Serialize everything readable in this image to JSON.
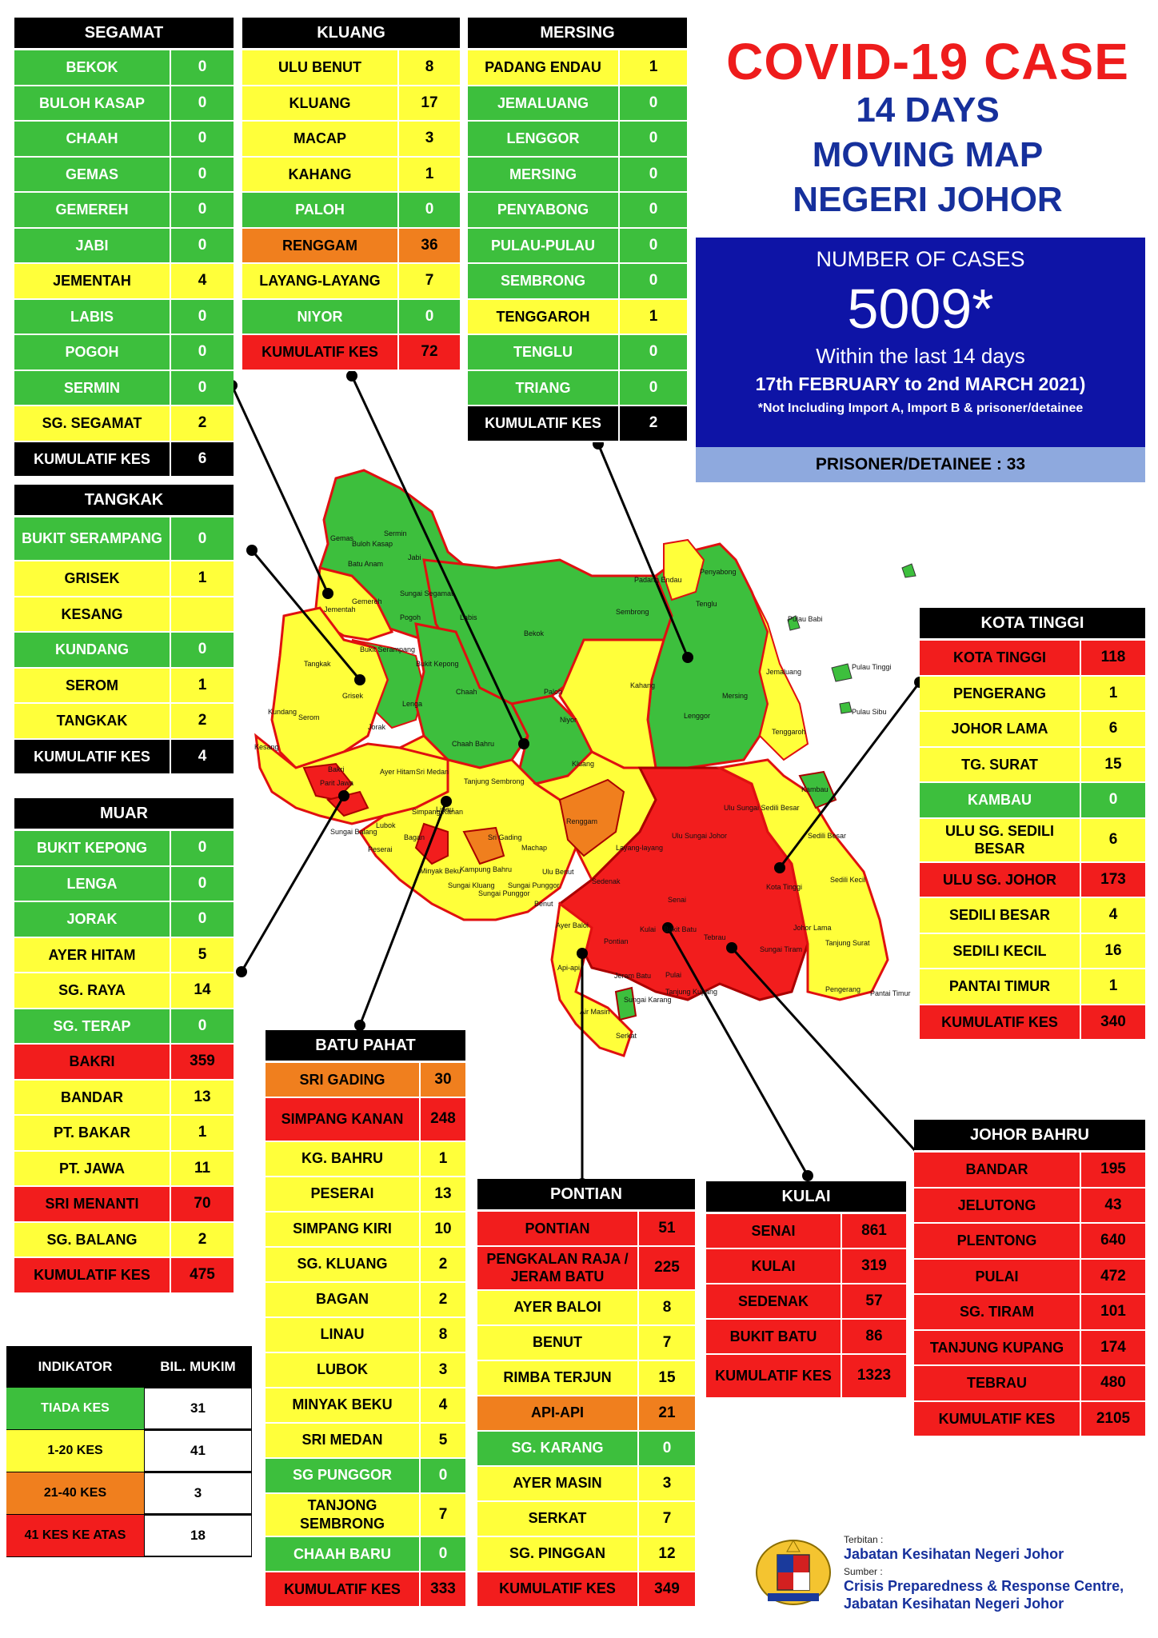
{
  "title": {
    "line1": "COVID-19 CASE",
    "line2": "14 DAYS",
    "line3": "MOVING MAP",
    "line4": "NEGERI JOHOR"
  },
  "summary": {
    "label": "NUMBER OF CASES",
    "total": "5009*",
    "within": "Within the last 14 days",
    "period": "17th FEBRUARY to 2nd MARCH 2021)",
    "note": "*Not Including Import A, Import B & prisoner/detainee",
    "prisoner": "PRISONER/DETAINEE : 33"
  },
  "colors": {
    "tiada_kes": "#3dbf3d",
    "kes_1_20": "#ffff3a",
    "kes_21_40": "#f07f1e",
    "kes_41_plus": "#f21d1d",
    "header": "#000000",
    "title_red": "#ee1c1c",
    "title_blue": "#16309c",
    "summary_box": "#0e14a6"
  },
  "districts": {
    "segamat": {
      "name": "SEGAMAT",
      "rows": [
        {
          "name": "BEKOK",
          "value": "0",
          "level": "g"
        },
        {
          "name": "BULOH KASAP",
          "value": "0",
          "level": "g"
        },
        {
          "name": "CHAAH",
          "value": "0",
          "level": "g"
        },
        {
          "name": "GEMAS",
          "value": "0",
          "level": "g"
        },
        {
          "name": "GEMEREH",
          "value": "0",
          "level": "g"
        },
        {
          "name": "JABI",
          "value": "0",
          "level": "g"
        },
        {
          "name": "JEMENTAH",
          "value": "4",
          "level": "y"
        },
        {
          "name": "LABIS",
          "value": "0",
          "level": "g"
        },
        {
          "name": "POGOH",
          "value": "0",
          "level": "g"
        },
        {
          "name": "SERMIN",
          "value": "0",
          "level": "g"
        },
        {
          "name": "SG. SEGAMAT",
          "value": "2",
          "level": "y"
        },
        {
          "name": "KUMULATIF KES",
          "value": "6",
          "level": "k"
        }
      ]
    },
    "kluang": {
      "name": "KLUANG",
      "rows": [
        {
          "name": "ULU BENUT",
          "value": "8",
          "level": "y"
        },
        {
          "name": "KLUANG",
          "value": "17",
          "level": "y"
        },
        {
          "name": "MACAP",
          "value": "3",
          "level": "y"
        },
        {
          "name": "KAHANG",
          "value": "1",
          "level": "y"
        },
        {
          "name": "PALOH",
          "value": "0",
          "level": "g"
        },
        {
          "name": "RENGGAM",
          "value": "36",
          "level": "o"
        },
        {
          "name": "LAYANG-LAYANG",
          "value": "7",
          "level": "y"
        },
        {
          "name": "NIYOR",
          "value": "0",
          "level": "g"
        },
        {
          "name": "KUMULATIF KES",
          "value": "72",
          "level": "r"
        }
      ]
    },
    "mersing": {
      "name": "MERSING",
      "rows": [
        {
          "name": "PADANG ENDAU",
          "value": "1",
          "level": "y"
        },
        {
          "name": "JEMALUANG",
          "value": "0",
          "level": "g"
        },
        {
          "name": "LENGGOR",
          "value": "0",
          "level": "g"
        },
        {
          "name": "MERSING",
          "value": "0",
          "level": "g"
        },
        {
          "name": "PENYABONG",
          "value": "0",
          "level": "g"
        },
        {
          "name": "PULAU-PULAU",
          "value": "0",
          "level": "g"
        },
        {
          "name": "SEMBRONG",
          "value": "0",
          "level": "g"
        },
        {
          "name": "TENGGAROH",
          "value": "1",
          "level": "y"
        },
        {
          "name": "TENGLU",
          "value": "0",
          "level": "g"
        },
        {
          "name": "TRIANG",
          "value": "0",
          "level": "g"
        },
        {
          "name": "KUMULATIF KES",
          "value": "2",
          "level": "k"
        }
      ]
    },
    "tangkak": {
      "name": "TANGKAK",
      "rows": [
        {
          "name": "BUKIT SERAMPANG",
          "value": "0",
          "level": "g"
        },
        {
          "name": "GRISEK",
          "value": "1",
          "level": "y"
        },
        {
          "name": "KESANG",
          "value": "",
          "level": "y"
        },
        {
          "name": "KUNDANG",
          "value": "0",
          "level": "g"
        },
        {
          "name": "SEROM",
          "value": "1",
          "level": "y"
        },
        {
          "name": "TANGKAK",
          "value": "2",
          "level": "y"
        },
        {
          "name": "KUMULATIF KES",
          "value": "4",
          "level": "k"
        }
      ]
    },
    "muar": {
      "name": "MUAR",
      "rows": [
        {
          "name": "BUKIT KEPONG",
          "value": "0",
          "level": "g"
        },
        {
          "name": "LENGA",
          "value": "0",
          "level": "g"
        },
        {
          "name": "JORAK",
          "value": "0",
          "level": "g"
        },
        {
          "name": "AYER HITAM",
          "value": "5",
          "level": "y"
        },
        {
          "name": "SG. RAYA",
          "value": "14",
          "level": "y"
        },
        {
          "name": "SG. TERAP",
          "value": "0",
          "level": "g"
        },
        {
          "name": "BAKRI",
          "value": "359",
          "level": "r"
        },
        {
          "name": "BANDAR",
          "value": "13",
          "level": "y"
        },
        {
          "name": "PT. BAKAR",
          "value": "1",
          "level": "y"
        },
        {
          "name": "PT. JAWA",
          "value": "11",
          "level": "y"
        },
        {
          "name": "SRI MENANTI",
          "value": "70",
          "level": "r"
        },
        {
          "name": "SG. BALANG",
          "value": "2",
          "level": "y"
        },
        {
          "name": "KUMULATIF KES",
          "value": "475",
          "level": "r"
        }
      ]
    },
    "batu_pahat": {
      "name": "BATU PAHAT",
      "rows": [
        {
          "name": "SRI GADING",
          "value": "30",
          "level": "o"
        },
        {
          "name": "SIMPANG KANAN",
          "value": "248",
          "level": "r"
        },
        {
          "name": "KG. BAHRU",
          "value": "1",
          "level": "y"
        },
        {
          "name": "PESERAI",
          "value": "13",
          "level": "y"
        },
        {
          "name": "SIMPANG KIRI",
          "value": "10",
          "level": "y"
        },
        {
          "name": "SG. KLUANG",
          "value": "2",
          "level": "y"
        },
        {
          "name": "BAGAN",
          "value": "2",
          "level": "y"
        },
        {
          "name": "LINAU",
          "value": "8",
          "level": "y"
        },
        {
          "name": "LUBOK",
          "value": "3",
          "level": "y"
        },
        {
          "name": "MINYAK BEKU",
          "value": "4",
          "level": "y"
        },
        {
          "name": "SRI MEDAN",
          "value": "5",
          "level": "y"
        },
        {
          "name": "SG PUNGGOR",
          "value": "0",
          "level": "g"
        },
        {
          "name": "TANJONG SEMBRONG",
          "value": "7",
          "level": "y"
        },
        {
          "name": "CHAAH BARU",
          "value": "0",
          "level": "g"
        },
        {
          "name": "KUMULATIF KES",
          "value": "333",
          "level": "r"
        }
      ]
    },
    "pontian": {
      "name": "PONTIAN",
      "rows": [
        {
          "name": "PONTIAN",
          "value": "51",
          "level": "r"
        },
        {
          "name": "PENGKALAN RAJA / JERAM BATU",
          "value": "225",
          "level": "r"
        },
        {
          "name": "AYER BALOI",
          "value": "8",
          "level": "y"
        },
        {
          "name": "BENUT",
          "value": "7",
          "level": "y"
        },
        {
          "name": "RIMBA TERJUN",
          "value": "15",
          "level": "y"
        },
        {
          "name": "API-API",
          "value": "21",
          "level": "o"
        },
        {
          "name": "SG. KARANG",
          "value": "0",
          "level": "g"
        },
        {
          "name": "AYER MASIN",
          "value": "3",
          "level": "y"
        },
        {
          "name": "SERKAT",
          "value": "7",
          "level": "y"
        },
        {
          "name": "SG. PINGGAN",
          "value": "12",
          "level": "y"
        },
        {
          "name": "KUMULATIF KES",
          "value": "349",
          "level": "r"
        }
      ]
    },
    "kulai": {
      "name": "KULAI",
      "rows": [
        {
          "name": "SENAI",
          "value": "861",
          "level": "r"
        },
        {
          "name": "KULAI",
          "value": "319",
          "level": "r"
        },
        {
          "name": "SEDENAK",
          "value": "57",
          "level": "r"
        },
        {
          "name": "BUKIT BATU",
          "value": "86",
          "level": "r"
        },
        {
          "name": "KUMULATIF KES",
          "value": "1323",
          "level": "r"
        }
      ]
    },
    "kota_tinggi": {
      "name": "KOTA TINGGI",
      "rows": [
        {
          "name": "KOTA TINGGI",
          "value": "118",
          "level": "r"
        },
        {
          "name": "PENGERANG",
          "value": "1",
          "level": "y"
        },
        {
          "name": "JOHOR LAMA",
          "value": "6",
          "level": "y"
        },
        {
          "name": "TG. SURAT",
          "value": "15",
          "level": "y"
        },
        {
          "name": "KAMBAU",
          "value": "0",
          "level": "g"
        },
        {
          "name": "ULU SG. SEDILI BESAR",
          "value": "6",
          "level": "y"
        },
        {
          "name": "ULU  SG. JOHOR",
          "value": "173",
          "level": "r"
        },
        {
          "name": "SEDILI BESAR",
          "value": "4",
          "level": "y"
        },
        {
          "name": "SEDILI KECIL",
          "value": "16",
          "level": "y"
        },
        {
          "name": "PANTAI TIMUR",
          "value": "1",
          "level": "y"
        },
        {
          "name": "KUMULATIF KES",
          "value": "340",
          "level": "r"
        }
      ]
    },
    "johor_bahru": {
      "name": "JOHOR BAHRU",
      "rows": [
        {
          "name": "BANDAR",
          "value": "195",
          "level": "r"
        },
        {
          "name": "JELUTONG",
          "value": "43",
          "level": "r"
        },
        {
          "name": "PLENTONG",
          "value": "640",
          "level": "r"
        },
        {
          "name": "PULAI",
          "value": "472",
          "level": "r"
        },
        {
          "name": "SG. TIRAM",
          "value": "101",
          "level": "r"
        },
        {
          "name": "TANJUNG KUPANG",
          "value": "174",
          "level": "r"
        },
        {
          "name": "TEBRAU",
          "value": "480",
          "level": "r"
        },
        {
          "name": "KUMULATIF KES",
          "value": "2105",
          "level": "r"
        }
      ]
    }
  },
  "legend": {
    "col1": "INDIKATOR",
    "col2": "BIL. MUKIM",
    "rows": [
      {
        "label": "TIADA KES",
        "count": "31",
        "level": "g"
      },
      {
        "label": "1-20 KES",
        "count": "41",
        "level": "y"
      },
      {
        "label": "21-40 KES",
        "count": "3",
        "level": "o"
      },
      {
        "label": "41 KES KE ATAS",
        "count": "18",
        "level": "r"
      }
    ]
  },
  "map_labels": {
    "gemas": "Gemas",
    "buloh": "Buloh Kasap",
    "sermin": "Sermin",
    "jabi": "Jabi",
    "batu_anam": "Batu Anam",
    "jementah": "Jementah",
    "gemereh": "Gemereh",
    "sg_segamat": "Sungai Segamat",
    "pogoh": "Pogoh",
    "labis": "Labis",
    "bekok": "Bekok",
    "bukit_serampang": "Bukit Serampang",
    "bukit_kepong": "Bukit Kepong",
    "tangkak": "Tangkak",
    "grisek": "Grisek",
    "lenga": "Lenga",
    "chaah": "Chaah",
    "paloh": "Paloh",
    "niyor": "Niyor",
    "kahang": "Kahang",
    "padang_endau": "Padang Endau",
    "penyabong": "Penyabong",
    "tenglu": "Tenglu",
    "sembrong": "Sembrong",
    "mersing": "Mersing",
    "lenggor": "Lenggor",
    "jemaluang": "Jemaluang",
    "tenggaroh": "Tenggaroh",
    "pulau_babi": "Pulau Babi",
    "pulau_tinggi": "Pulau Tinggi",
    "pulau_sibu": "Pulau Sibu",
    "kundang": "Kundang",
    "serom": "Serom",
    "kesang": "Kesang",
    "jorak": "Jorak",
    "chaah_bahru": "Chaah Bahru",
    "ayer_hitam": "Ayer Hitam",
    "sri_medan": "Sri Medan",
    "tanjung_sembrong": "Tanjung Sembrong",
    "kluang": "Kluang",
    "bakri": "Bakri",
    "jawa": "Parit Jawa",
    "sg_balang": "Sungai Balang",
    "renggam": "Renggam",
    "sri_gading": "Sri Gading",
    "machap": "Machap",
    "ulu_benut": "Ulu Benut",
    "layang": "Layang-layang",
    "ulu_sg_johor": "Ulu Sungai Johor",
    "ulu_sedili": "Ulu Sungai Sedili Besar",
    "kambau": "Kambau",
    "sedili_besar": "Sedili Besar",
    "sedili_kecil": "Sedili Kecil",
    "kota_tinggi": "Kota Tinggi",
    "johor_lama": "Johor Lama",
    "tanjung_surat": "Tanjung Surat",
    "pengerang": "Pengerang",
    "pantai_timur": "Pantai Timur",
    "sedenak": "Sedenak",
    "senai": "Senai",
    "kulai": "Kulai",
    "bukit_batu": "Bukit Batu",
    "tebrau": "Tebrau",
    "sungai_tiram": "Sungai Tiram",
    "pontian": "Pontian",
    "jeram_batu": "Jeram Batu",
    "ayer_baloi": "Ayer Baloi",
    "pulai": "Pulai",
    "benut": "Benut",
    "sg_pulai": "Sungai Punggor",
    "sg_karang": "Sungai Karang",
    "kupang": "Tanjung Kupang",
    "serkat": "Serkat",
    "air_masin": "Air Masin",
    "api_api": "Api-api",
    "minyak_beku": "Minyak Beku",
    "kampung_bahru": "Kampung Bahru",
    "sg_kluang": "Sungai Kluang",
    "simpang_kanan": "Simpang Kanan",
    "lubok": "Lubok",
    "linau": "Linau",
    "bagan": "Bagan",
    "peserai": "Peserai",
    "sg_punggor2": "Sungai Punggor"
  },
  "footer": {
    "terbitan_label": "Terbitan :",
    "terbitan": "Jabatan Kesihatan Negeri Johor",
    "sumber_label": "Sumber :",
    "sumber1": "Crisis Preparedness & Response Centre,",
    "sumber2": "Jabatan Kesihatan Negeri Johor"
  }
}
